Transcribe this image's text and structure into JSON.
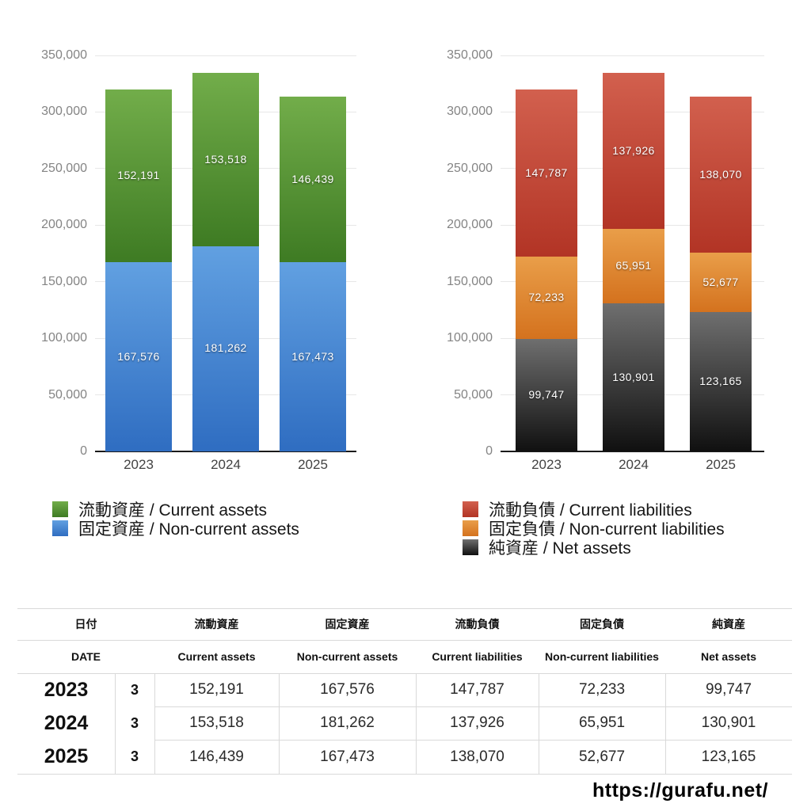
{
  "chart_data": [
    {
      "type": "bar",
      "stacked": true,
      "categories": [
        "2023",
        "2024",
        "2025"
      ],
      "ylim": [
        0,
        350000
      ],
      "y_ticks": [
        "0",
        "50,000",
        "100,000",
        "150,000",
        "200,000",
        "250,000",
        "300,000",
        "350,000"
      ],
      "grid": true,
      "legend_position": "bottom-left",
      "series": [
        {
          "key": "non-current-assets",
          "name": "固定資産 / Non-current assets",
          "values": [
            167576,
            181262,
            167473
          ],
          "color_top": "#61a0e1",
          "color_bottom": "#2f6dc1"
        },
        {
          "key": "current-assets",
          "name": "流動資産 / Current assets",
          "values": [
            152191,
            153518,
            146439
          ],
          "color_top": "#72ad4a",
          "color_bottom": "#3e7b23"
        }
      ]
    },
    {
      "type": "bar",
      "stacked": true,
      "categories": [
        "2023",
        "2024",
        "2025"
      ],
      "ylim": [
        0,
        350000
      ],
      "y_ticks": [
        "0",
        "50,000",
        "100,000",
        "150,000",
        "200,000",
        "250,000",
        "300,000",
        "350,000"
      ],
      "grid": true,
      "legend_position": "bottom-left",
      "series": [
        {
          "key": "net-assets",
          "name": "純資産 / Net assets",
          "values": [
            99747,
            130901,
            123165
          ],
          "color_top": "#6f6f6f",
          "color_bottom": "#101010"
        },
        {
          "key": "non-current-liabilities",
          "name": "固定負債 / Non-current liabilities",
          "values": [
            72233,
            65951,
            52677
          ],
          "color_top": "#e99e49",
          "color_bottom": "#d4721e"
        },
        {
          "key": "current-liabilities",
          "name": "流動負債 / Current liabilities",
          "values": [
            147787,
            137926,
            138070
          ],
          "color_top": "#d2604e",
          "color_bottom": "#b23425"
        }
      ]
    }
  ],
  "table": {
    "headers_jp": [
      "日付",
      "流動資産",
      "固定資産",
      "流動負債",
      "固定負債",
      "純資産"
    ],
    "headers_en": [
      "DATE",
      "Current assets",
      "Non-current assets",
      "Current liabilities",
      "Non-current liabilities",
      "Net assets"
    ],
    "rows": [
      {
        "year": "2023",
        "month": "3",
        "values": [
          "152,191",
          "167,576",
          "147,787",
          "72,233",
          "99,747"
        ]
      },
      {
        "year": "2024",
        "month": "3",
        "values": [
          "153,518",
          "181,262",
          "137,926",
          "65,951",
          "130,901"
        ]
      },
      {
        "year": "2025",
        "month": "3",
        "values": [
          "146,439",
          "167,473",
          "138,070",
          "52,677",
          "123,165"
        ]
      }
    ]
  },
  "footer": {
    "url": "https://gurafu.net/"
  }
}
